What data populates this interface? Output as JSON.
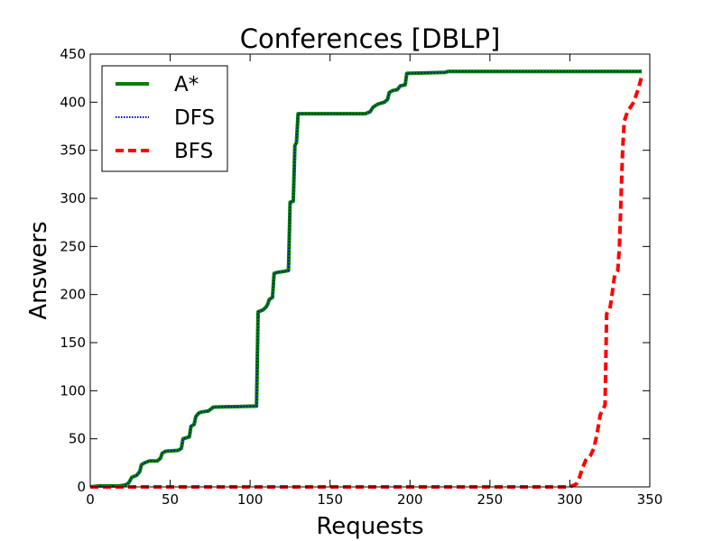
{
  "chart_data": {
    "type": "line",
    "title": "Conferences [DBLP]",
    "xlabel": "Requests",
    "ylabel": "Answers",
    "xlim": [
      0,
      350
    ],
    "ylim": [
      0,
      450
    ],
    "xticks": [
      0,
      50,
      100,
      150,
      200,
      250,
      300,
      350
    ],
    "yticks": [
      0,
      50,
      100,
      150,
      200,
      250,
      300,
      350,
      400,
      450
    ],
    "grid": false,
    "legend_position": "top-left",
    "series": [
      {
        "name": "A*",
        "color": "#007f00",
        "style": "solid",
        "points": [
          [
            0,
            0
          ],
          [
            5,
            1
          ],
          [
            18,
            1
          ],
          [
            22,
            2
          ],
          [
            24,
            4
          ],
          [
            26,
            10
          ],
          [
            29,
            12
          ],
          [
            31,
            16
          ],
          [
            32,
            23
          ],
          [
            34,
            25
          ],
          [
            37,
            27
          ],
          [
            42,
            27
          ],
          [
            44,
            30
          ],
          [
            45,
            35
          ],
          [
            47,
            37
          ],
          [
            55,
            38
          ],
          [
            57,
            40
          ],
          [
            58,
            50
          ],
          [
            62,
            52
          ],
          [
            63,
            63
          ],
          [
            65,
            65
          ],
          [
            66,
            73
          ],
          [
            68,
            77
          ],
          [
            70,
            78
          ],
          [
            74,
            79
          ],
          [
            77,
            83
          ],
          [
            104,
            84
          ],
          [
            105,
            182
          ],
          [
            108,
            184
          ],
          [
            110,
            187
          ],
          [
            111,
            190
          ],
          [
            112,
            195
          ],
          [
            114,
            197
          ],
          [
            115,
            222
          ],
          [
            117,
            223
          ],
          [
            121,
            224
          ],
          [
            124,
            225
          ],
          [
            125,
            296
          ],
          [
            127,
            297
          ],
          [
            128,
            355
          ],
          [
            129,
            358
          ],
          [
            130,
            388
          ],
          [
            172,
            388
          ],
          [
            175,
            390
          ],
          [
            177,
            395
          ],
          [
            180,
            398
          ],
          [
            184,
            400
          ],
          [
            186,
            403
          ],
          [
            187,
            410
          ],
          [
            189,
            412
          ],
          [
            192,
            413
          ],
          [
            194,
            417
          ],
          [
            197,
            418
          ],
          [
            198,
            430
          ],
          [
            222,
            431
          ],
          [
            224,
            432
          ],
          [
            345,
            432
          ]
        ]
      },
      {
        "name": "DFS",
        "color": "#0000bf",
        "style": "dotted",
        "points": [
          [
            0,
            0
          ],
          [
            5,
            1
          ],
          [
            18,
            1
          ],
          [
            22,
            2
          ],
          [
            24,
            4
          ],
          [
            26,
            10
          ],
          [
            29,
            12
          ],
          [
            31,
            16
          ],
          [
            32,
            23
          ],
          [
            34,
            25
          ],
          [
            37,
            27
          ],
          [
            42,
            27
          ],
          [
            44,
            30
          ],
          [
            45,
            35
          ],
          [
            47,
            37
          ],
          [
            55,
            38
          ],
          [
            57,
            40
          ],
          [
            58,
            50
          ],
          [
            62,
            52
          ],
          [
            63,
            63
          ],
          [
            65,
            65
          ],
          [
            66,
            73
          ],
          [
            68,
            77
          ],
          [
            70,
            78
          ],
          [
            74,
            79
          ],
          [
            77,
            83
          ],
          [
            104,
            84
          ],
          [
            105,
            182
          ],
          [
            108,
            184
          ],
          [
            110,
            187
          ],
          [
            111,
            190
          ],
          [
            112,
            195
          ],
          [
            114,
            197
          ],
          [
            115,
            222
          ],
          [
            117,
            223
          ],
          [
            121,
            224
          ],
          [
            124,
            225
          ],
          [
            125,
            296
          ],
          [
            127,
            297
          ],
          [
            128,
            355
          ],
          [
            129,
            358
          ],
          [
            130,
            388
          ],
          [
            172,
            388
          ],
          [
            175,
            390
          ],
          [
            177,
            395
          ],
          [
            180,
            398
          ],
          [
            184,
            400
          ],
          [
            186,
            403
          ],
          [
            187,
            410
          ],
          [
            189,
            412
          ],
          [
            192,
            413
          ],
          [
            194,
            417
          ],
          [
            197,
            418
          ],
          [
            198,
            430
          ],
          [
            222,
            431
          ],
          [
            224,
            432
          ],
          [
            345,
            432
          ]
        ]
      },
      {
        "name": "BFS",
        "color": "#ff0000",
        "style": "dashed",
        "points": [
          [
            0,
            0
          ],
          [
            300,
            0
          ],
          [
            304,
            3
          ],
          [
            306,
            10
          ],
          [
            308,
            20
          ],
          [
            310,
            28
          ],
          [
            313,
            33
          ],
          [
            315,
            40
          ],
          [
            317,
            55
          ],
          [
            319,
            75
          ],
          [
            322,
            85
          ],
          [
            323,
            180
          ],
          [
            325,
            185
          ],
          [
            326,
            195
          ],
          [
            328,
            220
          ],
          [
            330,
            225
          ],
          [
            331,
            250
          ],
          [
            332,
            300
          ],
          [
            333,
            350
          ],
          [
            334,
            380
          ],
          [
            336,
            390
          ],
          [
            340,
            400
          ],
          [
            343,
            415
          ],
          [
            345,
            427
          ]
        ]
      }
    ]
  }
}
